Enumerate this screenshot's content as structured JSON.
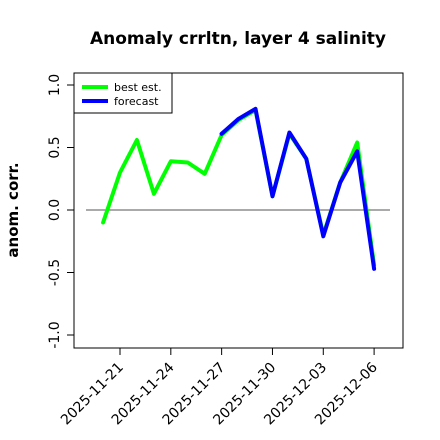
{
  "chart_data": {
    "type": "line",
    "title": "Anomaly crrltn, layer 4 salinity",
    "xlabel": "",
    "ylabel": "anom. corr.",
    "ylim": [
      -1.0,
      1.0
    ],
    "yticks": [
      "-1.0",
      "-0.5",
      "0.0",
      "0.5",
      "1.0"
    ],
    "xticks": [
      {
        "label": "2025-11-21",
        "date": "2025-11-21",
        "color": "#000000"
      },
      {
        "label": "2025-11-24",
        "date": "2025-11-24",
        "color": "#000000"
      },
      {
        "label": "2025-11-27",
        "date": "2025-11-27",
        "color": "#228B22"
      },
      {
        "label": "2025-11-30",
        "date": "2025-11-30",
        "color": "#000000"
      },
      {
        "label": "2025-12-03",
        "date": "2025-12-03",
        "color": "#000000"
      },
      {
        "label": "2025-12-06",
        "date": "2025-12-06",
        "color": "#000000"
      }
    ],
    "reference_line": 0.0,
    "legend_position": "top-left",
    "series": [
      {
        "name": "best est.",
        "color": "#00ff00",
        "x": [
          "2025-11-20",
          "2025-11-21",
          "2025-11-22",
          "2025-11-23",
          "2025-11-24",
          "2025-11-25",
          "2025-11-26",
          "2025-11-27",
          "2025-11-28",
          "2025-11-29",
          "2025-11-30",
          "2025-12-01",
          "2025-12-02",
          "2025-12-03",
          "2025-12-04",
          "2025-12-05",
          "2025-12-06"
        ],
        "values": [
          -0.1,
          0.3,
          0.56,
          0.13,
          0.39,
          0.38,
          0.29,
          0.6,
          0.72,
          0.8,
          0.11,
          0.61,
          0.41,
          -0.2,
          0.22,
          0.54,
          -0.44
        ]
      },
      {
        "name": "forecast",
        "color": "#0000ff",
        "x": [
          "2025-11-27",
          "2025-11-28",
          "2025-11-29",
          "2025-11-30",
          "2025-12-01",
          "2025-12-02",
          "2025-12-03",
          "2025-12-04",
          "2025-12-05",
          "2025-12-06"
        ],
        "values": [
          0.61,
          0.73,
          0.81,
          0.11,
          0.62,
          0.41,
          -0.21,
          0.22,
          0.47,
          -0.47
        ]
      }
    ]
  }
}
